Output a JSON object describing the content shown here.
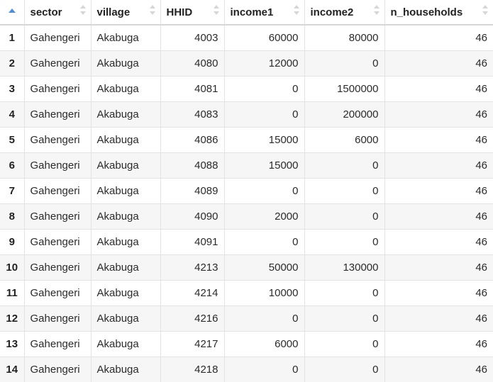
{
  "table": {
    "columns": [
      {
        "key": "sector",
        "label": "sector"
      },
      {
        "key": "village",
        "label": "village"
      },
      {
        "key": "HHID",
        "label": "HHID"
      },
      {
        "key": "income1",
        "label": "income1"
      },
      {
        "key": "income2",
        "label": "income2"
      },
      {
        "key": "n_households",
        "label": "n_households"
      }
    ],
    "rows": [
      {
        "idx": "1",
        "sector": "Gahengeri",
        "village": "Akabuga",
        "HHID": "4003",
        "income1": "60000",
        "income2": "80000",
        "n_households": "46"
      },
      {
        "idx": "2",
        "sector": "Gahengeri",
        "village": "Akabuga",
        "HHID": "4080",
        "income1": "12000",
        "income2": "0",
        "n_households": "46"
      },
      {
        "idx": "3",
        "sector": "Gahengeri",
        "village": "Akabuga",
        "HHID": "4081",
        "income1": "0",
        "income2": "1500000",
        "n_households": "46"
      },
      {
        "idx": "4",
        "sector": "Gahengeri",
        "village": "Akabuga",
        "HHID": "4083",
        "income1": "0",
        "income2": "200000",
        "n_households": "46"
      },
      {
        "idx": "5",
        "sector": "Gahengeri",
        "village": "Akabuga",
        "HHID": "4086",
        "income1": "15000",
        "income2": "6000",
        "n_households": "46"
      },
      {
        "idx": "6",
        "sector": "Gahengeri",
        "village": "Akabuga",
        "HHID": "4088",
        "income1": "15000",
        "income2": "0",
        "n_households": "46"
      },
      {
        "idx": "7",
        "sector": "Gahengeri",
        "village": "Akabuga",
        "HHID": "4089",
        "income1": "0",
        "income2": "0",
        "n_households": "46"
      },
      {
        "idx": "8",
        "sector": "Gahengeri",
        "village": "Akabuga",
        "HHID": "4090",
        "income1": "2000",
        "income2": "0",
        "n_households": "46"
      },
      {
        "idx": "9",
        "sector": "Gahengeri",
        "village": "Akabuga",
        "HHID": "4091",
        "income1": "0",
        "income2": "0",
        "n_households": "46"
      },
      {
        "idx": "10",
        "sector": "Gahengeri",
        "village": "Akabuga",
        "HHID": "4213",
        "income1": "50000",
        "income2": "130000",
        "n_households": "46"
      },
      {
        "idx": "11",
        "sector": "Gahengeri",
        "village": "Akabuga",
        "HHID": "4214",
        "income1": "10000",
        "income2": "0",
        "n_households": "46"
      },
      {
        "idx": "12",
        "sector": "Gahengeri",
        "village": "Akabuga",
        "HHID": "4216",
        "income1": "0",
        "income2": "0",
        "n_households": "46"
      },
      {
        "idx": "13",
        "sector": "Gahengeri",
        "village": "Akabuga",
        "HHID": "4217",
        "income1": "6000",
        "income2": "0",
        "n_households": "46"
      },
      {
        "idx": "14",
        "sector": "Gahengeri",
        "village": "Akabuga",
        "HHID": "4218",
        "income1": "0",
        "income2": "0",
        "n_households": "46"
      }
    ]
  },
  "icons": {
    "index_sort": "sort-ascending-icon",
    "column_sort": "sort-icon"
  },
  "colors": {
    "accent": "#4f8fd6",
    "row_stripe": "#f6f6f6",
    "grid": "#e3e3e3"
  }
}
